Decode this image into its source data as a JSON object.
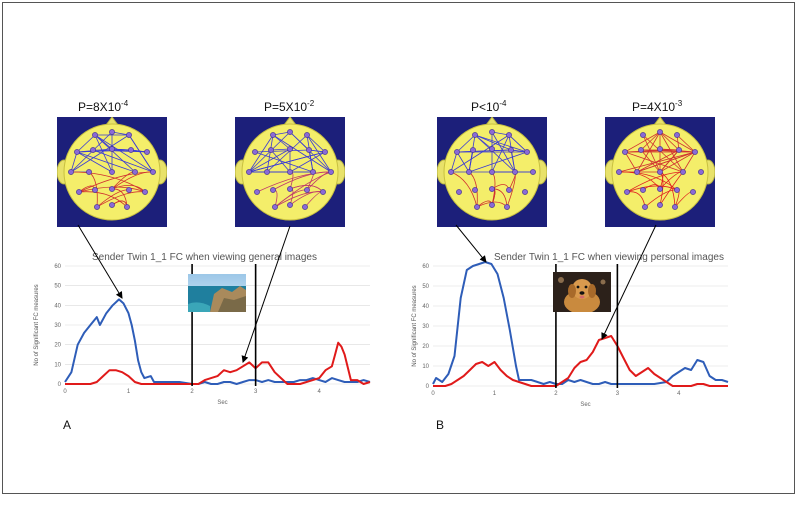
{
  "panels": [
    {
      "letter": "A",
      "pvalues": [
        {
          "base": "P=8X10",
          "exp": "-4"
        },
        {
          "base": "P=5X10",
          "exp": "-2"
        }
      ],
      "head_colors": [
        "#3a3ad6",
        "#3a3ad6"
      ],
      "inner_colors": [
        "#d03030",
        "#c03a6a"
      ],
      "photo": "coast-landscape-photo",
      "chart_data": {
        "type": "line",
        "title": "Sender Twin 1_1 FC when viewing general images",
        "xlabel": "Sec",
        "ylabel": "No of Significant FC measures",
        "xlim": [
          0,
          4.8
        ],
        "ylim": [
          0,
          60
        ],
        "xticks": [
          "0",
          "1",
          "2",
          "3",
          "4"
        ],
        "yticks": [
          "0",
          "10",
          "20",
          "30",
          "40",
          "50",
          "60"
        ],
        "vlines": [
          2,
          3
        ],
        "series": [
          {
            "color": "#2e5db8",
            "values": [
              [
                0,
                1
              ],
              [
                0.1,
                6
              ],
              [
                0.2,
                20
              ],
              [
                0.3,
                26
              ],
              [
                0.4,
                30
              ],
              [
                0.5,
                34
              ],
              [
                0.55,
                30
              ],
              [
                0.65,
                36
              ],
              [
                0.75,
                40
              ],
              [
                0.85,
                43
              ],
              [
                0.92,
                41
              ],
              [
                1.0,
                36
              ],
              [
                1.05,
                30
              ],
              [
                1.1,
                22
              ],
              [
                1.15,
                12
              ],
              [
                1.2,
                6
              ],
              [
                1.25,
                3
              ],
              [
                1.35,
                4
              ],
              [
                1.4,
                1
              ],
              [
                1.5,
                1
              ],
              [
                1.6,
                1
              ],
              [
                1.8,
                1
              ],
              [
                2.0,
                0
              ],
              [
                2.1,
                0
              ],
              [
                2.2,
                1
              ],
              [
                2.3,
                0
              ],
              [
                2.4,
                0
              ],
              [
                2.5,
                1
              ],
              [
                2.6,
                1
              ],
              [
                2.7,
                0
              ],
              [
                2.8,
                1
              ],
              [
                2.9,
                2
              ],
              [
                3.0,
                2
              ],
              [
                3.1,
                1
              ],
              [
                3.2,
                2
              ],
              [
                3.3,
                1
              ],
              [
                3.4,
                1
              ],
              [
                3.5,
                1
              ],
              [
                3.6,
                1
              ],
              [
                3.7,
                2
              ],
              [
                3.8,
                2
              ],
              [
                3.9,
                3
              ],
              [
                4.0,
                2
              ],
              [
                4.1,
                1
              ],
              [
                4.2,
                3
              ],
              [
                4.3,
                2
              ],
              [
                4.4,
                1
              ],
              [
                4.5,
                1
              ],
              [
                4.6,
                1
              ],
              [
                4.7,
                2
              ],
              [
                4.8,
                1
              ]
            ]
          },
          {
            "color": "#e01a1a",
            "values": [
              [
                0,
                0
              ],
              [
                0.4,
                0
              ],
              [
                0.5,
                1
              ],
              [
                0.6,
                4
              ],
              [
                0.7,
                7
              ],
              [
                0.8,
                7
              ],
              [
                0.9,
                6
              ],
              [
                1.0,
                4
              ],
              [
                1.1,
                1
              ],
              [
                1.2,
                0
              ],
              [
                2.0,
                0
              ],
              [
                2.1,
                0
              ],
              [
                2.2,
                2
              ],
              [
                2.3,
                3
              ],
              [
                2.4,
                4
              ],
              [
                2.5,
                7
              ],
              [
                2.6,
                6
              ],
              [
                2.7,
                7
              ],
              [
                2.8,
                9
              ],
              [
                2.9,
                11
              ],
              [
                3.0,
                8
              ],
              [
                3.1,
                11
              ],
              [
                3.2,
                11
              ],
              [
                3.3,
                6
              ],
              [
                3.4,
                3
              ],
              [
                3.5,
                0
              ],
              [
                3.7,
                0
              ],
              [
                3.9,
                2
              ],
              [
                4.0,
                3
              ],
              [
                4.1,
                7
              ],
              [
                4.2,
                9
              ],
              [
                4.25,
                15
              ],
              [
                4.3,
                21
              ],
              [
                4.35,
                19
              ],
              [
                4.4,
                15
              ],
              [
                4.5,
                2
              ],
              [
                4.6,
                2
              ],
              [
                4.7,
                0
              ],
              [
                4.8,
                1
              ]
            ]
          }
        ]
      }
    },
    {
      "letter": "B",
      "pvalues": [
        {
          "base": "P<10",
          "exp": "-4"
        },
        {
          "base": "P=4X10",
          "exp": "-3"
        }
      ],
      "head_colors": [
        "#3a3ad6",
        "#d03030"
      ],
      "inner_colors": [
        "#d03030",
        "#e02020"
      ],
      "photo": "dog-portrait-photo",
      "chart_data": {
        "type": "line",
        "title": "Sender Twin 1_1 FC when viewing personal images",
        "xlabel": "Sec",
        "ylabel": "No of Significant FC measures",
        "xlim": [
          0,
          4.8
        ],
        "ylim": [
          0,
          60
        ],
        "xticks": [
          "0",
          "1",
          "2",
          "3",
          "4"
        ],
        "yticks": [
          "0",
          "10",
          "20",
          "30",
          "40",
          "50",
          "60"
        ],
        "vlines": [
          2,
          3
        ],
        "series": [
          {
            "color": "#2e5db8",
            "values": [
              [
                0,
                1
              ],
              [
                0.05,
                4
              ],
              [
                0.15,
                2
              ],
              [
                0.25,
                6
              ],
              [
                0.35,
                15
              ],
              [
                0.45,
                44
              ],
              [
                0.55,
                58
              ],
              [
                0.65,
                60
              ],
              [
                0.75,
                61
              ],
              [
                0.85,
                62
              ],
              [
                0.95,
                61
              ],
              [
                1.05,
                56
              ],
              [
                1.15,
                44
              ],
              [
                1.25,
                28
              ],
              [
                1.35,
                10
              ],
              [
                1.4,
                3
              ],
              [
                1.5,
                3
              ],
              [
                1.6,
                3
              ],
              [
                1.7,
                2
              ],
              [
                1.8,
                1
              ],
              [
                1.9,
                2
              ],
              [
                2.0,
                1
              ],
              [
                2.1,
                1
              ],
              [
                2.2,
                3
              ],
              [
                2.3,
                2
              ],
              [
                2.4,
                3
              ],
              [
                2.5,
                2
              ],
              [
                2.6,
                1
              ],
              [
                2.7,
                1
              ],
              [
                2.8,
                2
              ],
              [
                2.9,
                1
              ],
              [
                3.0,
                1
              ],
              [
                3.2,
                1
              ],
              [
                3.4,
                1
              ],
              [
                3.6,
                1
              ],
              [
                3.8,
                2
              ],
              [
                3.9,
                5
              ],
              [
                4.0,
                7
              ],
              [
                4.1,
                9
              ],
              [
                4.2,
                8
              ],
              [
                4.3,
                13
              ],
              [
                4.4,
                12
              ],
              [
                4.5,
                5
              ],
              [
                4.6,
                3
              ],
              [
                4.7,
                3
              ],
              [
                4.8,
                2
              ]
            ]
          },
          {
            "color": "#e01a1a",
            "values": [
              [
                0,
                0
              ],
              [
                0.2,
                0
              ],
              [
                0.3,
                1
              ],
              [
                0.4,
                3
              ],
              [
                0.5,
                5
              ],
              [
                0.6,
                8
              ],
              [
                0.7,
                11
              ],
              [
                0.8,
                12
              ],
              [
                0.9,
                10
              ],
              [
                1.0,
                12
              ],
              [
                1.1,
                8
              ],
              [
                1.2,
                5
              ],
              [
                1.3,
                3
              ],
              [
                1.4,
                2
              ],
              [
                1.5,
                1
              ],
              [
                1.6,
                0
              ],
              [
                2.0,
                0
              ],
              [
                2.1,
                2
              ],
              [
                2.2,
                4
              ],
              [
                2.3,
                9
              ],
              [
                2.4,
                12
              ],
              [
                2.5,
                13
              ],
              [
                2.6,
                17
              ],
              [
                2.7,
                23
              ],
              [
                2.8,
                24
              ],
              [
                2.9,
                25
              ],
              [
                3.0,
                20
              ],
              [
                3.1,
                14
              ],
              [
                3.2,
                8
              ],
              [
                3.3,
                5
              ],
              [
                3.4,
                7
              ],
              [
                3.5,
                9
              ],
              [
                3.6,
                6
              ],
              [
                3.7,
                4
              ],
              [
                3.8,
                2
              ],
              [
                3.9,
                0
              ],
              [
                4.2,
                0
              ],
              [
                4.3,
                1
              ],
              [
                4.4,
                1
              ],
              [
                4.5,
                0
              ],
              [
                4.8,
                0
              ]
            ]
          }
        ]
      }
    }
  ]
}
